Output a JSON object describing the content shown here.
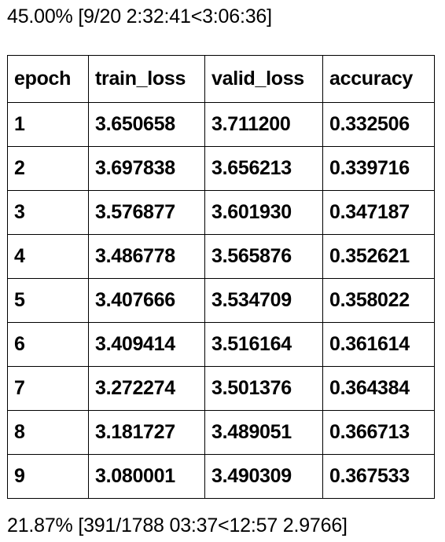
{
  "progress_epochs": {
    "text": "45.00% [9/20 2:32:41<3:06:36]",
    "percent": 45.0,
    "completed": 9,
    "total": 20,
    "elapsed": "2:32:41",
    "remaining": "3:06:36"
  },
  "table": {
    "columns": [
      "epoch",
      "train_loss",
      "valid_loss",
      "accuracy"
    ],
    "rows": [
      [
        "1",
        "3.650658",
        "3.711200",
        "0.332506"
      ],
      [
        "2",
        "3.697838",
        "3.656213",
        "0.339716"
      ],
      [
        "3",
        "3.576877",
        "3.601930",
        "0.347187"
      ],
      [
        "4",
        "3.486778",
        "3.565876",
        "0.352621"
      ],
      [
        "5",
        "3.407666",
        "3.534709",
        "0.358022"
      ],
      [
        "6",
        "3.409414",
        "3.516164",
        "0.361614"
      ],
      [
        "7",
        "3.272274",
        "3.501376",
        "0.364384"
      ],
      [
        "8",
        "3.181727",
        "3.489051",
        "0.366713"
      ],
      [
        "9",
        "3.080001",
        "3.490309",
        "0.367533"
      ]
    ]
  },
  "progress_batches": {
    "text": "21.87% [391/1788 03:37<12:57 2.9766]",
    "percent": 21.87,
    "completed": 391,
    "total": 1788,
    "elapsed": "03:37",
    "remaining": "12:57",
    "current_loss": "2.9766"
  }
}
